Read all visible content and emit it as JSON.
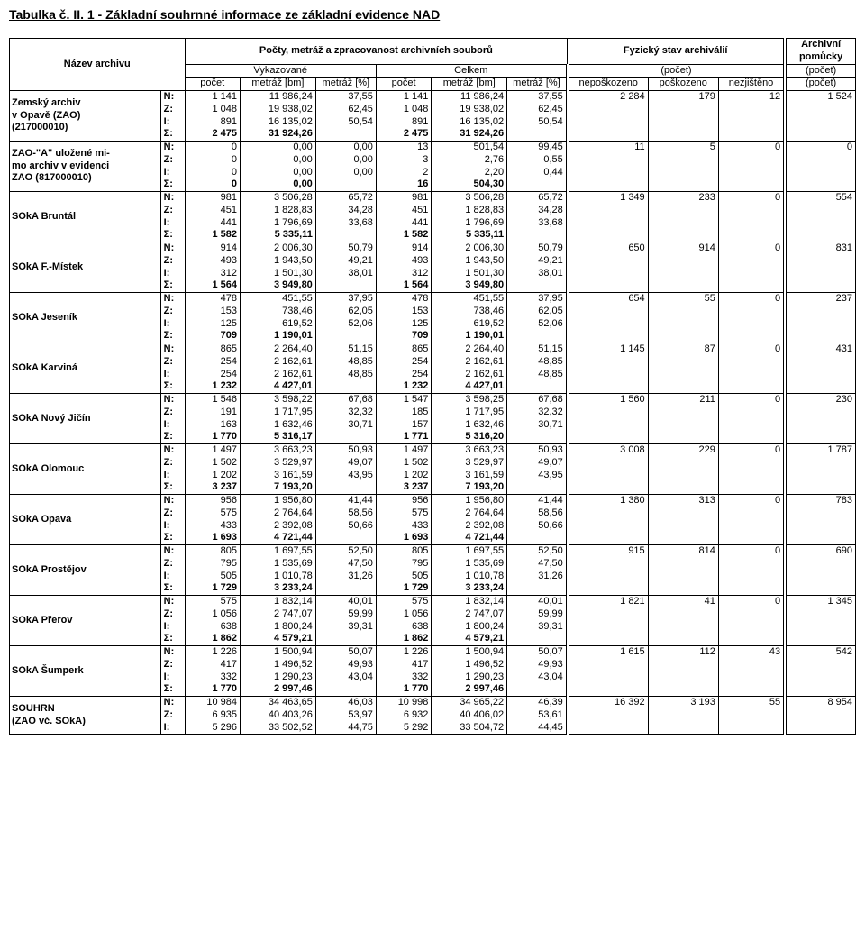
{
  "title": "Tabulka č. II. 1 - Základní souhrnné informace ze základní evidence NAD",
  "header": {
    "name_col": "Název  archivu",
    "group_counts": "Počty, metráž a zpracovanost archivních souborů",
    "group_fyz": "Fyzický  stav  archiválií",
    "group_aids": "Archivní pomůcky",
    "subA": "Vykazované",
    "subB": "Celkem",
    "subC": "(počet)",
    "subD": "(počet)",
    "cols": {
      "pocet": "počet",
      "metraz_bm": "metráž [bm]",
      "metraz_pct": "metráž [%]",
      "neposk": "nepoškozeno",
      "posk": "poškozeno",
      "nezj": "nezjištěno"
    }
  },
  "row_labels": {
    "N": "N:",
    "Z": "Z:",
    "I": "I:",
    "S": "Σ:"
  },
  "archives": [
    {
      "name_lines": [
        "Zemský archiv",
        "v Opavě (ZAO)",
        "(217000010)"
      ],
      "rows": {
        "N": [
          "1 141",
          "11 986,24",
          "37,55",
          "1 141",
          "11 986,24",
          "37,55",
          "2 284",
          "179",
          "12",
          "1 524"
        ],
        "Z": [
          "1 048",
          "19 938,02",
          "62,45",
          "1 048",
          "19 938,02",
          "62,45",
          "",
          "",
          "",
          ""
        ],
        "I": [
          "891",
          "16 135,02",
          "50,54",
          "891",
          "16 135,02",
          "50,54",
          "",
          "",
          "",
          ""
        ],
        "S": [
          "2 475",
          "31 924,26",
          "",
          "2 475",
          "31 924,26",
          "",
          "",
          "",
          "",
          ""
        ]
      }
    },
    {
      "name_lines": [
        "ZAO-\"A\" uložené mi-",
        "mo archiv v evidenci",
        "ZAO (817000010)"
      ],
      "rows": {
        "N": [
          "0",
          "0,00",
          "0,00",
          "13",
          "501,54",
          "99,45",
          "11",
          "5",
          "0",
          "0"
        ],
        "Z": [
          "0",
          "0,00",
          "0,00",
          "3",
          "2,76",
          "0,55",
          "",
          "",
          "",
          ""
        ],
        "I": [
          "0",
          "0,00",
          "0,00",
          "2",
          "2,20",
          "0,44",
          "",
          "",
          "",
          ""
        ],
        "S": [
          "0",
          "0,00",
          "",
          "16",
          "504,30",
          "",
          "",
          "",
          "",
          ""
        ]
      }
    },
    {
      "name_lines": [
        "SOkA Bruntál"
      ],
      "rows": {
        "N": [
          "981",
          "3 506,28",
          "65,72",
          "981",
          "3 506,28",
          "65,72",
          "1 349",
          "233",
          "0",
          "554"
        ],
        "Z": [
          "451",
          "1 828,83",
          "34,28",
          "451",
          "1 828,83",
          "34,28",
          "",
          "",
          "",
          ""
        ],
        "I": [
          "441",
          "1 796,69",
          "33,68",
          "441",
          "1 796,69",
          "33,68",
          "",
          "",
          "",
          ""
        ],
        "S": [
          "1 582",
          "5 335,11",
          "",
          "1 582",
          "5 335,11",
          "",
          "",
          "",
          "",
          ""
        ]
      }
    },
    {
      "name_lines": [
        "SOkA F.-Místek"
      ],
      "rows": {
        "N": [
          "914",
          "2 006,30",
          "50,79",
          "914",
          "2 006,30",
          "50,79",
          "650",
          "914",
          "0",
          "831"
        ],
        "Z": [
          "493",
          "1 943,50",
          "49,21",
          "493",
          "1 943,50",
          "49,21",
          "",
          "",
          "",
          ""
        ],
        "I": [
          "312",
          "1 501,30",
          "38,01",
          "312",
          "1 501,30",
          "38,01",
          "",
          "",
          "",
          ""
        ],
        "S": [
          "1 564",
          "3 949,80",
          "",
          "1 564",
          "3 949,80",
          "",
          "",
          "",
          "",
          ""
        ]
      }
    },
    {
      "name_lines": [
        "SOkA Jeseník"
      ],
      "rows": {
        "N": [
          "478",
          "451,55",
          "37,95",
          "478",
          "451,55",
          "37,95",
          "654",
          "55",
          "0",
          "237"
        ],
        "Z": [
          "153",
          "738,46",
          "62,05",
          "153",
          "738,46",
          "62,05",
          "",
          "",
          "",
          ""
        ],
        "I": [
          "125",
          "619,52",
          "52,06",
          "125",
          "619,52",
          "52,06",
          "",
          "",
          "",
          ""
        ],
        "S": [
          "709",
          "1 190,01",
          "",
          "709",
          "1 190,01",
          "",
          "",
          "",
          "",
          ""
        ]
      }
    },
    {
      "name_lines": [
        "SOkA Karviná"
      ],
      "rows": {
        "N": [
          "865",
          "2 264,40",
          "51,15",
          "865",
          "2 264,40",
          "51,15",
          "1 145",
          "87",
          "0",
          "431"
        ],
        "Z": [
          "254",
          "2 162,61",
          "48,85",
          "254",
          "2 162,61",
          "48,85",
          "",
          "",
          "",
          ""
        ],
        "I": [
          "254",
          "2 162,61",
          "48,85",
          "254",
          "2 162,61",
          "48,85",
          "",
          "",
          "",
          ""
        ],
        "S": [
          "1 232",
          "4 427,01",
          "",
          "1 232",
          "4 427,01",
          "",
          "",
          "",
          "",
          ""
        ]
      }
    },
    {
      "name_lines": [
        "SOkA Nový Jičín"
      ],
      "rows": {
        "N": [
          "1 546",
          "3 598,22",
          "67,68",
          "1 547",
          "3 598,25",
          "67,68",
          "1 560",
          "211",
          "0",
          "230"
        ],
        "Z": [
          "191",
          "1 717,95",
          "32,32",
          "185",
          "1 717,95",
          "32,32",
          "",
          "",
          "",
          ""
        ],
        "I": [
          "163",
          "1 632,46",
          "30,71",
          "157",
          "1 632,46",
          "30,71",
          "",
          "",
          "",
          ""
        ],
        "S": [
          "1 770",
          "5 316,17",
          "",
          "1 771",
          "5 316,20",
          "",
          "",
          "",
          "",
          ""
        ]
      }
    },
    {
      "name_lines": [
        "SOkA Olomouc"
      ],
      "rows": {
        "N": [
          "1 497",
          "3 663,23",
          "50,93",
          "1 497",
          "3 663,23",
          "50,93",
          "3 008",
          "229",
          "0",
          "1 787"
        ],
        "Z": [
          "1 502",
          "3 529,97",
          "49,07",
          "1 502",
          "3 529,97",
          "49,07",
          "",
          "",
          "",
          ""
        ],
        "I": [
          "1 202",
          "3 161,59",
          "43,95",
          "1 202",
          "3 161,59",
          "43,95",
          "",
          "",
          "",
          ""
        ],
        "S": [
          "3 237",
          "7 193,20",
          "",
          "3 237",
          "7 193,20",
          "",
          "",
          "",
          "",
          ""
        ]
      }
    },
    {
      "name_lines": [
        "SOkA Opava"
      ],
      "rows": {
        "N": [
          "956",
          "1 956,80",
          "41,44",
          "956",
          "1 956,80",
          "41,44",
          "1 380",
          "313",
          "0",
          "783"
        ],
        "Z": [
          "575",
          "2 764,64",
          "58,56",
          "575",
          "2 764,64",
          "58,56",
          "",
          "",
          "",
          ""
        ],
        "I": [
          "433",
          "2 392,08",
          "50,66",
          "433",
          "2 392,08",
          "50,66",
          "",
          "",
          "",
          ""
        ],
        "S": [
          "1 693",
          "4 721,44",
          "",
          "1 693",
          "4 721,44",
          "",
          "",
          "",
          "",
          ""
        ]
      }
    },
    {
      "name_lines": [
        "SOkA Prostějov"
      ],
      "rows": {
        "N": [
          "805",
          "1 697,55",
          "52,50",
          "805",
          "1 697,55",
          "52,50",
          "915",
          "814",
          "0",
          "690"
        ],
        "Z": [
          "795",
          "1 535,69",
          "47,50",
          "795",
          "1 535,69",
          "47,50",
          "",
          "",
          "",
          ""
        ],
        "I": [
          "505",
          "1 010,78",
          "31,26",
          "505",
          "1 010,78",
          "31,26",
          "",
          "",
          "",
          ""
        ],
        "S": [
          "1 729",
          "3 233,24",
          "",
          "1 729",
          "3 233,24",
          "",
          "",
          "",
          "",
          ""
        ]
      }
    },
    {
      "name_lines": [
        "SOkA Přerov"
      ],
      "rows": {
        "N": [
          "575",
          "1 832,14",
          "40,01",
          "575",
          "1 832,14",
          "40,01",
          "1 821",
          "41",
          "0",
          "1 345"
        ],
        "Z": [
          "1 056",
          "2 747,07",
          "59,99",
          "1 056",
          "2 747,07",
          "59,99",
          "",
          "",
          "",
          ""
        ],
        "I": [
          "638",
          "1 800,24",
          "39,31",
          "638",
          "1 800,24",
          "39,31",
          "",
          "",
          "",
          ""
        ],
        "S": [
          "1 862",
          "4 579,21",
          "",
          "1 862",
          "4 579,21",
          "",
          "",
          "",
          "",
          ""
        ]
      }
    },
    {
      "name_lines": [
        "SOkA Šumperk"
      ],
      "rows": {
        "N": [
          "1 226",
          "1 500,94",
          "50,07",
          "1 226",
          "1 500,94",
          "50,07",
          "1 615",
          "112",
          "43",
          "542"
        ],
        "Z": [
          "417",
          "1 496,52",
          "49,93",
          "417",
          "1 496,52",
          "49,93",
          "",
          "",
          "",
          ""
        ],
        "I": [
          "332",
          "1 290,23",
          "43,04",
          "332",
          "1 290,23",
          "43,04",
          "",
          "",
          "",
          ""
        ],
        "S": [
          "1 770",
          "2 997,46",
          "",
          "1 770",
          "2 997,46",
          "",
          "",
          "",
          "",
          ""
        ]
      }
    },
    {
      "name_lines": [
        "SOUHRN",
        "(ZAO vč. SOkA)"
      ],
      "last": true,
      "rows": {
        "N": [
          "10 984",
          "34 463,65",
          "46,03",
          "10 998",
          "34 965,22",
          "46,39",
          "16 392",
          "3 193",
          "55",
          "8 954"
        ],
        "Z": [
          "6 935",
          "40 403,26",
          "53,97",
          "6 932",
          "40 406,02",
          "53,61",
          "",
          "",
          "",
          ""
        ],
        "I": [
          "5 296",
          "33 502,52",
          "44,75",
          "5 292",
          "33 504,72",
          "44,45",
          "",
          "",
          "",
          ""
        ]
      }
    }
  ]
}
